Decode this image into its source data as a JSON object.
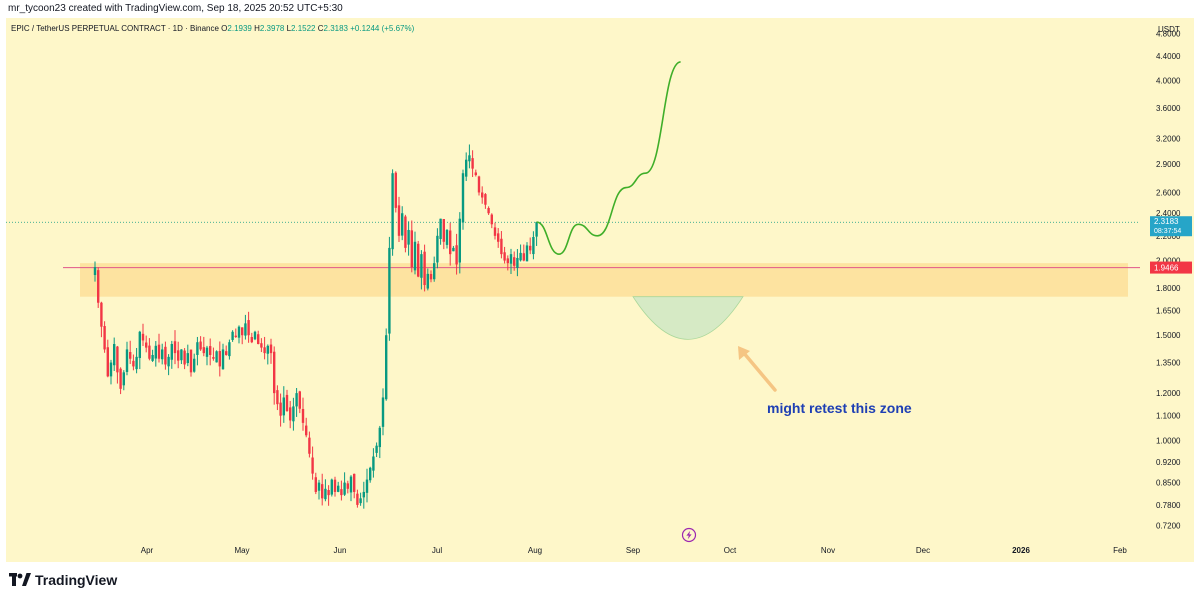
{
  "header": {
    "attribution": "mr_tycoon23 created with TradingView.com, Sep 18, 2025 20:52 UTC+5:30"
  },
  "legend": {
    "symbol": "EPIC / TetherUS PERPETUAL CONTRACT · 1D · Binance",
    "o_label": "O",
    "o_value": "2.1939",
    "h_label": "H",
    "h_value": "2.3978",
    "l_label": "L",
    "l_value": "2.1522",
    "c_label": "C",
    "c_value": "2.3183",
    "change": "+0.1244 (+5.67%)"
  },
  "price_axis": {
    "currency": "USDT",
    "last_price": "2.3183",
    "countdown": "08:37:54",
    "level_price": "1.9466"
  },
  "annotation": {
    "text": "might retest this zone"
  },
  "brand": {
    "name": "TradingView"
  },
  "colors": {
    "background": "#fef7c9",
    "up": "#089981",
    "down": "#f23645",
    "projection": "#3fae29",
    "zone": "#fde3a0",
    "level_line": "#e0568a",
    "last_price": "#26a5c8",
    "level_label": "#f23645",
    "retest_fill": "#cfe8c4",
    "arrow": "#f5c583",
    "annotation_text": "#1e3fb4"
  },
  "chart_data": {
    "type": "candlestick",
    "scale": "log",
    "ylim": [
      0.7,
      4.9
    ],
    "y_ticks": [
      "4.8000",
      "4.4000",
      "4.0000",
      "3.6000",
      "3.2000",
      "2.9000",
      "2.6000",
      "2.4000",
      "2.2000",
      "2.0000",
      "1.8000",
      "1.6500",
      "1.5000",
      "1.3500",
      "1.2000",
      "1.1000",
      "1.0000",
      "0.9200",
      "0.8500",
      "0.7800",
      "0.7200"
    ],
    "x_ticks": [
      "Apr",
      "May",
      "Jun",
      "Jul",
      "Aug",
      "Sep",
      "Oct",
      "Nov",
      "Dec",
      "2026",
      "Feb"
    ],
    "first_date": "2025-03-15",
    "zone": [
      1.74,
      1.98
    ],
    "level": 1.9466,
    "last_price": 2.3183,
    "close_path": [
      1.95,
      1.7,
      1.55,
      1.42,
      1.28,
      1.35,
      1.45,
      1.3,
      1.22,
      1.3,
      1.42,
      1.37,
      1.33,
      1.38,
      1.52,
      1.47,
      1.43,
      1.37,
      1.39,
      1.44,
      1.37,
      1.42,
      1.34,
      1.38,
      1.45,
      1.4,
      1.36,
      1.42,
      1.34,
      1.4,
      1.3,
      1.37,
      1.46,
      1.42,
      1.4,
      1.43,
      1.39,
      1.37,
      1.41,
      1.33,
      1.42,
      1.39,
      1.46,
      1.52,
      1.49,
      1.55,
      1.5,
      1.57,
      1.5,
      1.46,
      1.52,
      1.45,
      1.43,
      1.4,
      1.44,
      1.4,
      1.2,
      1.15,
      1.1,
      1.18,
      1.12,
      1.08,
      1.14,
      1.2,
      1.13,
      1.07,
      1.02,
      0.95,
      0.88,
      0.82,
      0.85,
      0.8,
      0.83,
      0.81,
      0.86,
      0.82,
      0.84,
      0.81,
      0.85,
      0.83,
      0.87,
      0.82,
      0.78,
      0.8,
      0.82,
      0.86,
      0.9,
      0.94,
      0.98,
      1.05,
      1.18,
      1.5,
      2.1,
      2.8,
      2.45,
      2.2,
      2.4,
      2.1,
      2.25,
      1.95,
      2.15,
      1.88,
      2.05,
      1.82,
      1.9,
      1.86,
      1.98,
      2.2,
      2.35,
      2.15,
      2.25,
      2.05,
      2.1,
      1.97,
      2.35,
      2.8,
      2.95,
      3.0,
      2.85,
      2.78,
      2.6,
      2.55,
      2.48,
      2.4,
      2.3,
      2.2,
      2.15,
      2.05,
      2.0,
      1.98,
      2.05,
      1.96,
      2.02,
      2.06,
      2.0,
      2.12,
      2.08,
      2.19,
      2.32
    ],
    "projection": [
      [
        2.32,
        0
      ],
      [
        2.05,
        7
      ],
      [
        2.3,
        13
      ],
      [
        2.2,
        19
      ],
      [
        2.65,
        28
      ],
      [
        2.8,
        34
      ],
      [
        4.3,
        45
      ]
    ],
    "retest_bottom": 1.47
  }
}
